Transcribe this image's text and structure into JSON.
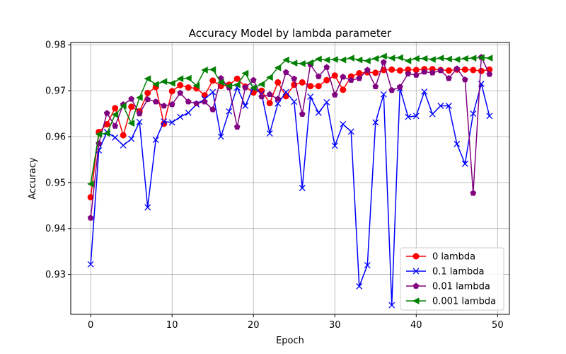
{
  "chart_data": {
    "type": "line",
    "title": "Accuracy Model by lambda parameter",
    "xlabel": "Epoch",
    "ylabel": "Accuracy",
    "xlim": [
      -2.45,
      51.45
    ],
    "ylim": [
      0.9213,
      0.9805
    ],
    "xticks": [
      0,
      10,
      20,
      30,
      40,
      50
    ],
    "yticks": [
      0.93,
      0.94,
      0.95,
      0.96,
      0.97,
      0.98
    ],
    "grid": true,
    "legend_position": "lower-right",
    "x": [
      0,
      1,
      2,
      3,
      4,
      5,
      6,
      7,
      8,
      9,
      10,
      11,
      12,
      13,
      14,
      15,
      16,
      17,
      18,
      19,
      20,
      21,
      22,
      23,
      24,
      25,
      26,
      27,
      28,
      29,
      30,
      31,
      32,
      33,
      34,
      35,
      36,
      37,
      38,
      39,
      40,
      41,
      42,
      43,
      44,
      45,
      46,
      47,
      48,
      49
    ],
    "series": [
      {
        "name": "0 lambda",
        "color": "#ff0000",
        "marker": "circle",
        "values": [
          0.9468,
          0.961,
          0.9627,
          0.9662,
          0.9603,
          0.9665,
          0.9655,
          0.9695,
          0.9708,
          0.9628,
          0.9699,
          0.9712,
          0.9707,
          0.9705,
          0.969,
          0.9722,
          0.971,
          0.9713,
          0.9726,
          0.9709,
          0.9696,
          0.97,
          0.9673,
          0.9718,
          0.9688,
          0.9713,
          0.9718,
          0.971,
          0.971,
          0.9723,
          0.9733,
          0.9702,
          0.9731,
          0.9738,
          0.974,
          0.9739,
          0.9745,
          0.9746,
          0.9744,
          0.9746,
          0.9745,
          0.9747,
          0.9747,
          0.9745,
          0.9744,
          0.9746,
          0.9746,
          0.9745,
          0.9743,
          0.9746
        ]
      },
      {
        "name": "0.1 lambda",
        "color": "#0000ff",
        "marker": "x",
        "values": [
          0.9322,
          0.957,
          0.961,
          0.9598,
          0.9581,
          0.9595,
          0.9632,
          0.9446,
          0.9593,
          0.9633,
          0.9631,
          0.9643,
          0.9652,
          0.967,
          0.9682,
          0.9697,
          0.96,
          0.9655,
          0.9707,
          0.9667,
          0.9708,
          0.9693,
          0.9607,
          0.9672,
          0.9697,
          0.9676,
          0.9488,
          0.9687,
          0.9652,
          0.9675,
          0.958,
          0.9627,
          0.9611,
          0.9274,
          0.932,
          0.9631,
          0.9692,
          0.9233,
          0.9705,
          0.9643,
          0.9645,
          0.9698,
          0.9649,
          0.9667,
          0.9667,
          0.9584,
          0.9541,
          0.965,
          0.9715,
          0.9645
        ]
      },
      {
        "name": "0.01 lambda",
        "color": "#800080",
        "marker": "pentagon",
        "values": [
          0.9423,
          0.9585,
          0.9651,
          0.9623,
          0.967,
          0.9682,
          0.965,
          0.9681,
          0.9676,
          0.9667,
          0.967,
          0.9695,
          0.9676,
          0.9672,
          0.9676,
          0.9659,
          0.9727,
          0.9707,
          0.9621,
          0.9707,
          0.9723,
          0.9687,
          0.9692,
          0.9682,
          0.974,
          0.9726,
          0.9649,
          0.9757,
          0.9731,
          0.9751,
          0.9691,
          0.973,
          0.9723,
          0.9727,
          0.9745,
          0.9709,
          0.9762,
          0.9701,
          0.9708,
          0.9737,
          0.9734,
          0.9741,
          0.9739,
          0.9744,
          0.9727,
          0.9748,
          0.9724,
          0.9477,
          0.9773,
          0.9736
        ]
      },
      {
        "name": "0.001 lambda",
        "color": "#008000",
        "marker": "triangle-left",
        "values": [
          0.9497,
          0.9605,
          0.9607,
          0.9648,
          0.9667,
          0.9629,
          0.9685,
          0.9726,
          0.9714,
          0.972,
          0.9716,
          0.9726,
          0.9727,
          0.9711,
          0.9745,
          0.9746,
          0.9718,
          0.971,
          0.9713,
          0.9738,
          0.9706,
          0.9714,
          0.9729,
          0.975,
          0.9767,
          0.976,
          0.9759,
          0.9761,
          0.9769,
          0.9767,
          0.9768,
          0.9767,
          0.9771,
          0.9767,
          0.9765,
          0.977,
          0.9775,
          0.9771,
          0.9772,
          0.9765,
          0.977,
          0.977,
          0.9768,
          0.9771,
          0.9769,
          0.9768,
          0.977,
          0.9771,
          0.9772,
          0.9771
        ]
      }
    ]
  }
}
